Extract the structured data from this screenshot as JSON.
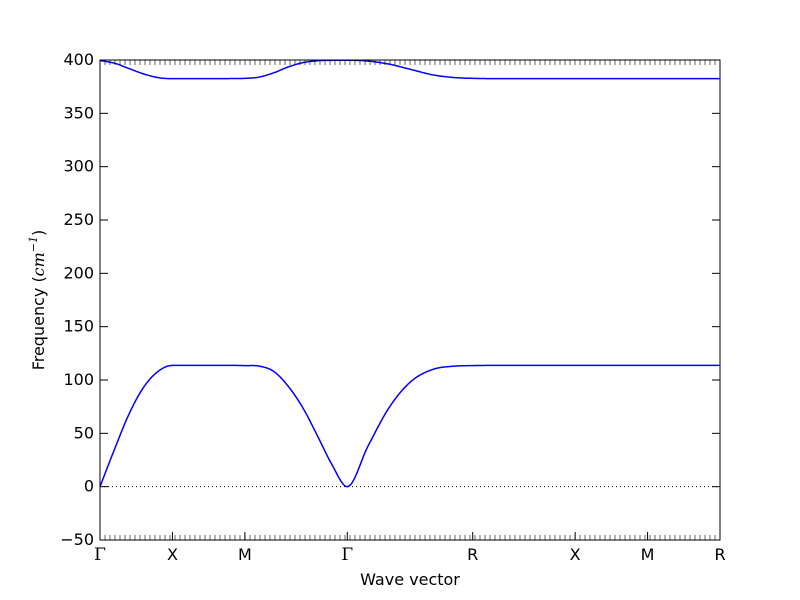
{
  "chart_data": {
    "type": "line",
    "title": "",
    "xlabel": "Wave vector",
    "ylabel": {
      "prefix": "Frequency (",
      "unit": "cm",
      "exponent": "−1",
      "suffix": ")"
    },
    "ylim": [
      -50,
      400
    ],
    "yticks": [
      -50,
      0,
      50,
      100,
      150,
      200,
      250,
      300,
      350,
      400
    ],
    "high_symmetry_points": [
      {
        "label": "Γ",
        "position": 0.0
      },
      {
        "label": "X",
        "position": 0.5
      },
      {
        "label": "M",
        "position": 1.0
      },
      {
        "label": "Γ",
        "position": 1.7071
      },
      {
        "label": "R",
        "position": 2.5731
      },
      {
        "label": "X",
        "position": 3.2802
      },
      {
        "label": "M",
        "position": 3.7802
      },
      {
        "label": "R",
        "position": 4.2802
      }
    ],
    "xlim": [
      0,
      4.2802
    ],
    "zero_line": {
      "value": 0,
      "style": "dotted"
    },
    "series": [
      {
        "color": "#0000ff",
        "x": [
          0,
          0.1,
          0.2,
          0.3,
          0.4,
          0.5,
          0.6,
          0.7,
          0.8,
          0.9,
          1.0,
          1.1,
          1.2,
          1.3,
          1.4,
          1.5,
          1.6,
          1.7071,
          1.85,
          2.0,
          2.15,
          2.3,
          2.45,
          2.5731,
          2.8,
          3.0,
          3.2802,
          3.5,
          3.7802,
          4.0,
          4.2802
        ],
        "values": [
          0,
          35,
          68,
          93,
          108,
          113.7,
          113.7,
          113.7,
          113.7,
          113.7,
          113.5,
          113,
          108,
          94,
          74,
          48,
          21,
          0,
          38,
          75,
          99,
          110,
          113,
          113.5,
          113.7,
          113.7,
          113.7,
          113.7,
          113.7,
          113.7,
          113.7
        ]
      },
      {
        "color": "#0000ff",
        "x": [
          0,
          0.1,
          0.2,
          0.3,
          0.4,
          0.5,
          0.6,
          0.7,
          0.8,
          0.9,
          1.0,
          1.1,
          1.2,
          1.3,
          1.4,
          1.5,
          1.6,
          1.7071,
          1.85,
          2.0,
          2.15,
          2.3,
          2.45,
          2.5731,
          2.8,
          3.0,
          3.2802,
          3.5,
          3.7802,
          4.0,
          4.2802
        ],
        "values": [
          399.5,
          397,
          392,
          387,
          383.5,
          382.5,
          382.5,
          382.5,
          382.5,
          382.6,
          382.8,
          384,
          388,
          393.5,
          397.5,
          399.3,
          399.7,
          399.8,
          399,
          396,
          391,
          386,
          383.5,
          382.8,
          382.5,
          382.5,
          382.5,
          382.5,
          382.5,
          382.5,
          382.5
        ]
      }
    ]
  }
}
